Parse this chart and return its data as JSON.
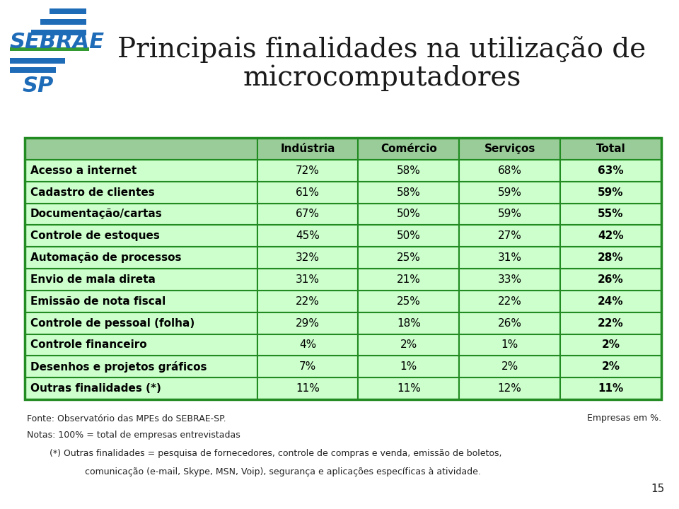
{
  "title_line1": "Principais finalidades na utilização de",
  "title_line2": "microcomputadores",
  "title_fontsize": 28,
  "title_color": "#1a1a1a",
  "columns": [
    "Indústria",
    "Comércio",
    "Serviços",
    "Total"
  ],
  "rows": [
    {
      "label": "Acesso a internet",
      "values": [
        "72%",
        "58%",
        "68%",
        "63%"
      ]
    },
    {
      "label": "Cadastro de clientes",
      "values": [
        "61%",
        "58%",
        "59%",
        "59%"
      ]
    },
    {
      "label": "Documentação/cartas",
      "values": [
        "67%",
        "50%",
        "59%",
        "55%"
      ]
    },
    {
      "label": "Controle de estoques",
      "values": [
        "45%",
        "50%",
        "27%",
        "42%"
      ]
    },
    {
      "label": "Automação de processos",
      "values": [
        "32%",
        "25%",
        "31%",
        "28%"
      ]
    },
    {
      "label": "Envio de mala direta",
      "values": [
        "31%",
        "21%",
        "33%",
        "26%"
      ]
    },
    {
      "label": "Emissão de nota fiscal",
      "values": [
        "22%",
        "25%",
        "22%",
        "24%"
      ]
    },
    {
      "label": "Controle de pessoal (folha)",
      "values": [
        "29%",
        "18%",
        "26%",
        "22%"
      ]
    },
    {
      "label": "Controle financeiro",
      "values": [
        "4%",
        "2%",
        "1%",
        "2%"
      ]
    },
    {
      "label": "Desenhos e projetos gráficos",
      "values": [
        "7%",
        "1%",
        "2%",
        "2%"
      ]
    },
    {
      "label": "Outras finalidades (*)",
      "values": [
        "11%",
        "11%",
        "12%",
        "11%"
      ]
    }
  ],
  "header_bg": "#99CC99",
  "row_bg": "#CCFFCC",
  "border_color": "#228B22",
  "header_text_color": "#000000",
  "row_label_color": "#000000",
  "total_color": "#000000",
  "fonte_text": "Fonte: Observatório das MPEs do SEBRAE-SP.",
  "empresas_text": "Empresas em %.",
  "notas_text": "Notas: 100% = total de empresas entrevistadas",
  "asterisco_line1": "(*) Outras finalidades = pesquisa de fornecedores, controle de compras e venda, emissão de boletos,",
  "asterisco_line2": "comunicação (e-mail, Skype, MSN, Voip), segurança e aplicações específicas à atividade.",
  "page_number": "15",
  "bg_color": "#FFFFFF",
  "logo_blue": "#1E6BB8",
  "logo_green": "#339933"
}
